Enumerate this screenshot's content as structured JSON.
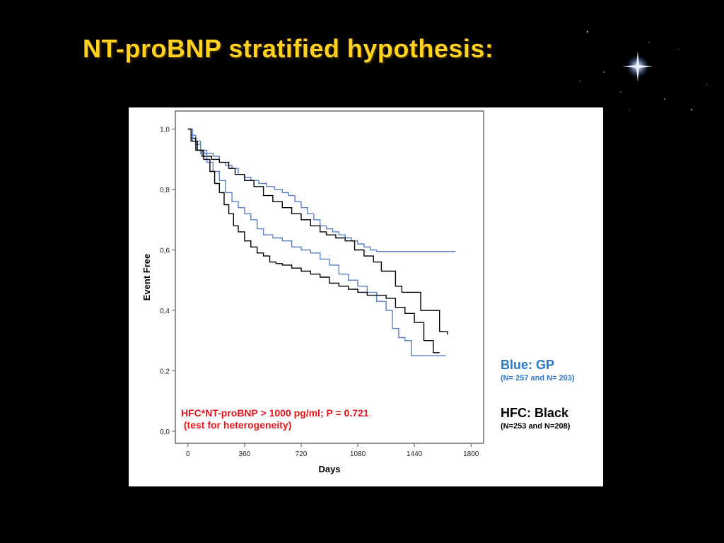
{
  "slide": {
    "title": "NT-proBNP stratified hypothesis:"
  },
  "colors": {
    "title": "#ffd21f",
    "gp": "#5b7fc4",
    "hfc": "#000000",
    "annotation": "#e8141b",
    "legend_gp": "#2a78c8"
  },
  "legend": {
    "gp": {
      "label": "Blue: GP",
      "note": "(N= 257 and N= 203)"
    },
    "hfc": {
      "label": "HFC: Black",
      "note": "(N=253 and N=208)"
    }
  },
  "annotation": {
    "line1": "HFC*NT-proBNP > 1000 pg/ml; P = 0.721",
    "line2": " (test for heterogeneity)"
  },
  "chart_data": {
    "type": "line",
    "step": true,
    "xlabel": "Days",
    "ylabel": "Event Free",
    "xlim": [
      -80,
      1880
    ],
    "ylim": [
      -0.04,
      1.06
    ],
    "xticks": [
      0,
      360,
      720,
      1080,
      1440,
      1800
    ],
    "xtick_labels": [
      "0",
      "360",
      "720",
      "1080",
      "1440",
      "1800"
    ],
    "yticks": [
      0.0,
      0.2,
      0.4,
      0.6,
      0.8,
      1.0
    ],
    "ytick_labels": [
      "0,0",
      "0,2",
      "0,4",
      "0,6",
      "0,8",
      "1,0"
    ],
    "grid": false,
    "series": [
      {
        "group": "GP",
        "color": "#5b7fc4",
        "points": [
          [
            0,
            1.0
          ],
          [
            20,
            0.98
          ],
          [
            50,
            0.95
          ],
          [
            80,
            0.93
          ],
          [
            120,
            0.92
          ],
          [
            160,
            0.91
          ],
          [
            200,
            0.89
          ],
          [
            240,
            0.88
          ],
          [
            280,
            0.87
          ],
          [
            320,
            0.85
          ],
          [
            360,
            0.84
          ],
          [
            400,
            0.83
          ],
          [
            450,
            0.82
          ],
          [
            500,
            0.81
          ],
          [
            550,
            0.8
          ],
          [
            600,
            0.79
          ],
          [
            640,
            0.78
          ],
          [
            680,
            0.76
          ],
          [
            720,
            0.74
          ],
          [
            760,
            0.72
          ],
          [
            800,
            0.7
          ],
          [
            840,
            0.68
          ],
          [
            880,
            0.67
          ],
          [
            920,
            0.66
          ],
          [
            960,
            0.65
          ],
          [
            1000,
            0.64
          ],
          [
            1040,
            0.63
          ],
          [
            1080,
            0.62
          ],
          [
            1120,
            0.61
          ],
          [
            1160,
            0.6
          ],
          [
            1200,
            0.595
          ],
          [
            1700,
            0.595
          ]
        ]
      },
      {
        "group": "HFC",
        "color": "#000000",
        "points": [
          [
            0,
            1.0
          ],
          [
            20,
            0.97
          ],
          [
            50,
            0.93
          ],
          [
            90,
            0.91
          ],
          [
            150,
            0.9
          ],
          [
            200,
            0.89
          ],
          [
            260,
            0.87
          ],
          [
            300,
            0.85
          ],
          [
            360,
            0.83
          ],
          [
            420,
            0.81
          ],
          [
            480,
            0.78
          ],
          [
            540,
            0.76
          ],
          [
            600,
            0.74
          ],
          [
            660,
            0.72
          ],
          [
            720,
            0.7
          ],
          [
            780,
            0.68
          ],
          [
            840,
            0.66
          ],
          [
            880,
            0.65
          ],
          [
            940,
            0.64
          ],
          [
            1000,
            0.63
          ],
          [
            1060,
            0.6
          ],
          [
            1120,
            0.58
          ],
          [
            1180,
            0.56
          ],
          [
            1230,
            0.53
          ],
          [
            1280,
            0.53
          ],
          [
            1320,
            0.48
          ],
          [
            1360,
            0.46
          ],
          [
            1420,
            0.46
          ],
          [
            1480,
            0.4
          ],
          [
            1540,
            0.4
          ],
          [
            1600,
            0.33
          ],
          [
            1650,
            0.32
          ]
        ]
      },
      {
        "group": "GP",
        "color": "#5b7fc4",
        "points": [
          [
            0,
            1.0
          ],
          [
            30,
            0.96
          ],
          [
            80,
            0.92
          ],
          [
            120,
            0.89
          ],
          [
            160,
            0.86
          ],
          [
            200,
            0.83
          ],
          [
            240,
            0.79
          ],
          [
            280,
            0.76
          ],
          [
            320,
            0.74
          ],
          [
            360,
            0.72
          ],
          [
            400,
            0.7
          ],
          [
            440,
            0.67
          ],
          [
            480,
            0.65
          ],
          [
            540,
            0.64
          ],
          [
            600,
            0.63
          ],
          [
            660,
            0.61
          ],
          [
            720,
            0.6
          ],
          [
            780,
            0.59
          ],
          [
            840,
            0.57
          ],
          [
            900,
            0.55
          ],
          [
            960,
            0.52
          ],
          [
            1020,
            0.5
          ],
          [
            1080,
            0.48
          ],
          [
            1140,
            0.46
          ],
          [
            1200,
            0.43
          ],
          [
            1260,
            0.4
          ],
          [
            1300,
            0.34
          ],
          [
            1340,
            0.31
          ],
          [
            1380,
            0.3
          ],
          [
            1420,
            0.25
          ],
          [
            1640,
            0.25
          ]
        ]
      },
      {
        "group": "HFC",
        "color": "#000000",
        "points": [
          [
            0,
            1.0
          ],
          [
            20,
            0.96
          ],
          [
            60,
            0.93
          ],
          [
            100,
            0.9
          ],
          [
            140,
            0.86
          ],
          [
            170,
            0.82
          ],
          [
            200,
            0.79
          ],
          [
            230,
            0.75
          ],
          [
            260,
            0.72
          ],
          [
            290,
            0.68
          ],
          [
            320,
            0.66
          ],
          [
            360,
            0.63
          ],
          [
            400,
            0.61
          ],
          [
            440,
            0.59
          ],
          [
            480,
            0.58
          ],
          [
            520,
            0.56
          ],
          [
            560,
            0.555
          ],
          [
            600,
            0.55
          ],
          [
            660,
            0.54
          ],
          [
            720,
            0.53
          ],
          [
            780,
            0.52
          ],
          [
            840,
            0.51
          ],
          [
            900,
            0.49
          ],
          [
            960,
            0.48
          ],
          [
            1020,
            0.47
          ],
          [
            1080,
            0.46
          ],
          [
            1140,
            0.45
          ],
          [
            1200,
            0.45
          ],
          [
            1260,
            0.44
          ],
          [
            1320,
            0.41
          ],
          [
            1380,
            0.39
          ],
          [
            1440,
            0.36
          ],
          [
            1500,
            0.3
          ],
          [
            1560,
            0.26
          ],
          [
            1600,
            0.26
          ]
        ]
      }
    ]
  }
}
